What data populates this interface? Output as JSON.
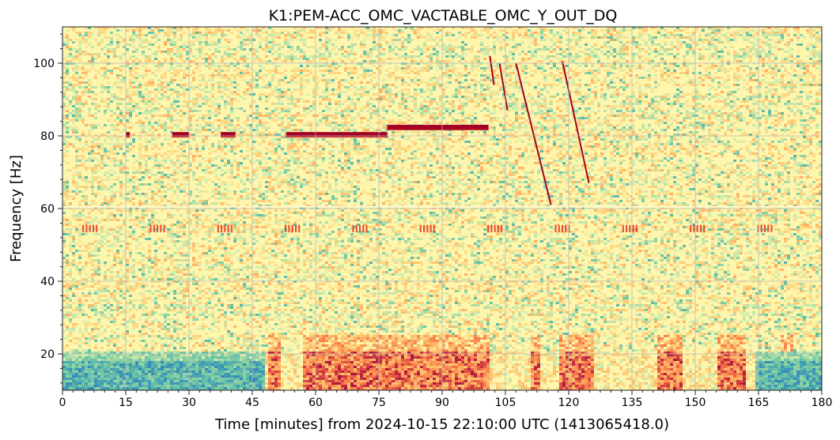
{
  "chart_data": {
    "type": "heatmap",
    "title": "K1:PEM-ACC_OMC_VACTABLE_OMC_Y_OUT_DQ",
    "xlabel": "Time [minutes] from 2024-10-15 22:10:00 UTC (1413065418.0)",
    "ylabel": "Frequency [Hz]",
    "xlim": [
      0,
      180
    ],
    "ylim": [
      10,
      110
    ],
    "xticks": [
      0,
      15,
      30,
      45,
      60,
      75,
      90,
      105,
      120,
      135,
      150,
      165,
      180
    ],
    "yticks": [
      20,
      40,
      60,
      80,
      100
    ],
    "grid": true,
    "colormap": "Spectral_r",
    "colors": {
      "background": "#fef3a8",
      "high": "#a50026",
      "low": "#3a6fb3"
    },
    "features": {
      "segments_80hz": [
        {
          "x0": 15,
          "x1": 16,
          "y": 80.4
        },
        {
          "x0": 26,
          "x1": 30,
          "y": 80.4
        },
        {
          "x0": 37.5,
          "x1": 41,
          "y": 80.4
        },
        {
          "x0": 53,
          "x1": 77,
          "y": 80.4
        },
        {
          "x0": 77,
          "x1": 101,
          "y": 82.4
        }
      ],
      "sweeps": [
        {
          "x0": 101.3,
          "y0": 102,
          "x1": 102.3,
          "y1": 94
        },
        {
          "x0": 103.6,
          "y0": 100,
          "x1": 105.5,
          "y1": 87
        },
        {
          "x0": 107.5,
          "y0": 100,
          "x1": 115.8,
          "y1": 61
        },
        {
          "x0": 118.5,
          "y0": 100.5,
          "x1": 124.8,
          "y1": 67
        }
      ],
      "bursts_54hz_centers": [
        6.5,
        22.5,
        38.5,
        54.5,
        70.5,
        86.5,
        102.5,
        118.5,
        134.5,
        150.5,
        166.5
      ],
      "line_60hz": 60.5,
      "low_freq_band": [
        10,
        20
      ]
    }
  }
}
